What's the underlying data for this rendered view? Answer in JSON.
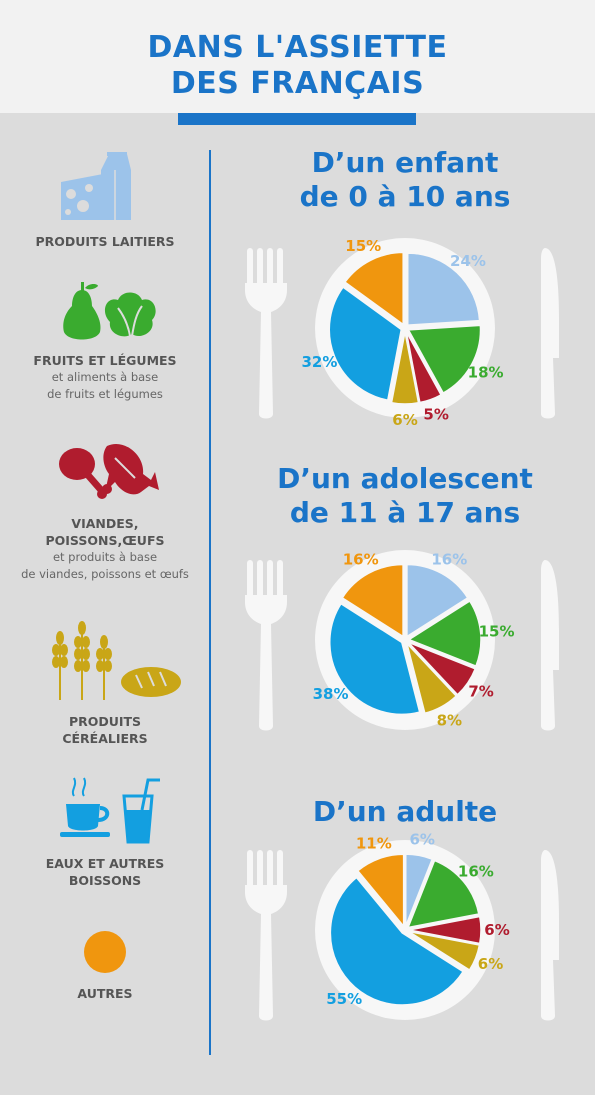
{
  "header": {
    "title_line1": "DANS L'ASSIETTE",
    "title_line2": "DES FRANÇAIS"
  },
  "legend": [
    {
      "key": "laitiers",
      "label": "PRODUITS LAITIERS",
      "sub": "",
      "color": "#9cc3ea",
      "icon": "cheese-milk-icon"
    },
    {
      "key": "fruits",
      "label": "FRUITS ET LÉGUMES",
      "sub": "et aliments à base\nde fruits et légumes",
      "color": "#3aab2f",
      "icon": "pear-lettuce-icon"
    },
    {
      "key": "viandes",
      "label": "VIANDES,\nPOISSONS,ŒUFS",
      "sub": "et produits à base\nde viandes, poissons et œufs",
      "color": "#b01c2e",
      "icon": "meat-fish-icon"
    },
    {
      "key": "cereales",
      "label": "PRODUITS\nCÉRÉALIERS",
      "sub": "",
      "color": "#c9a617",
      "icon": "wheat-bread-icon"
    },
    {
      "key": "eaux",
      "label": "EAUX ET AUTRES\nBOISSONS",
      "sub": "",
      "color": "#139fe0",
      "icon": "cup-glass-icon"
    },
    {
      "key": "autres",
      "label": "AUTRES",
      "sub": "",
      "color": "#f0960e",
      "icon": "orange-dot-icon"
    }
  ],
  "chart_data": [
    {
      "type": "pie",
      "title": "D’un enfant\nde 0 à 10 ans",
      "categories": [
        "PRODUITS LAITIERS",
        "FRUITS ET LÉGUMES",
        "VIANDES, POISSONS,ŒUFS",
        "PRODUITS CÉRÉALIERS",
        "EAUX ET AUTRES BOISSONS",
        "AUTRES"
      ],
      "values": [
        24,
        18,
        5,
        6,
        32,
        15
      ],
      "labels": [
        "24%",
        "18%",
        "5%",
        "6%",
        "32%",
        "15%"
      ],
      "colors": [
        "#9cc3ea",
        "#3aab2f",
        "#b01c2e",
        "#c9a617",
        "#139fe0",
        "#f0960e"
      ]
    },
    {
      "type": "pie",
      "title": "D’un adolescent\nde 11 à 17 ans",
      "categories": [
        "PRODUITS LAITIERS",
        "FRUITS ET LÉGUMES",
        "VIANDES, POISSONS,ŒUFS",
        "PRODUITS CÉRÉALIERS",
        "EAUX ET AUTRES BOISSONS",
        "AUTRES"
      ],
      "values": [
        16,
        15,
        7,
        8,
        38,
        16
      ],
      "labels": [
        "16%",
        "15%",
        "7%",
        "8%",
        "38%",
        "16%"
      ],
      "colors": [
        "#9cc3ea",
        "#3aab2f",
        "#b01c2e",
        "#c9a617",
        "#139fe0",
        "#f0960e"
      ]
    },
    {
      "type": "pie",
      "title": "D’un adulte",
      "categories": [
        "PRODUITS LAITIERS",
        "FRUITS ET LÉGUMES",
        "VIANDES, POISSONS,ŒUFS",
        "PRODUITS CÉRÉALIERS",
        "EAUX ET AUTRES BOISSONS",
        "AUTRES"
      ],
      "values": [
        6,
        16,
        6,
        6,
        55,
        11
      ],
      "labels": [
        "6%",
        "16%",
        "6%",
        "6%",
        "55%",
        "11%"
      ],
      "colors": [
        "#9cc3ea",
        "#3aab2f",
        "#b01c2e",
        "#c9a617",
        "#139fe0",
        "#f0960e"
      ]
    }
  ]
}
